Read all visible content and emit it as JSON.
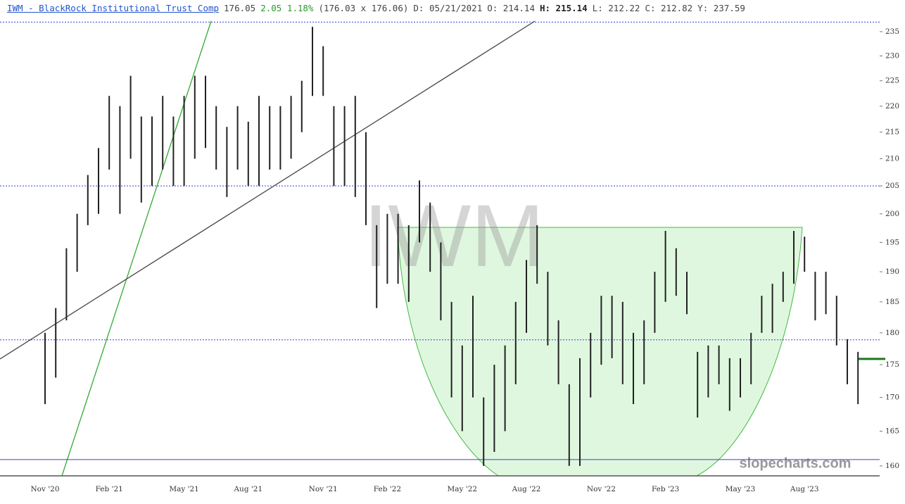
{
  "header": {
    "items": [
      "IWM - BlackRock Institutional Trust Comp",
      "176.05",
      "2.05 1.18%",
      "(176.03 x 176.06)",
      "D: 05/21/2021",
      "O: 214.14",
      "H: 215.14",
      "L: 212.22",
      "C: 212.82",
      "Y: 237.59"
    ]
  },
  "chart_data": {
    "type": "ohlc",
    "watermark": "IWM",
    "logo": "slopecharts.com",
    "color": "#222",
    "log_scale": true,
    "ylim": [
      158.6,
      237.2
    ],
    "yticks": [
      160,
      165,
      170,
      175,
      180,
      185,
      190,
      195,
      200,
      205,
      210,
      215,
      220,
      225,
      230,
      235
    ],
    "categories": [
      "Nov '20",
      null,
      null,
      null,
      null,
      null,
      "Feb '21",
      null,
      null,
      null,
      null,
      null,
      null,
      "May '21",
      null,
      null,
      null,
      null,
      null,
      "Aug '21",
      null,
      null,
      null,
      null,
      null,
      null,
      "Nov '21",
      null,
      null,
      null,
      null,
      null,
      "Feb '22",
      null,
      null,
      null,
      null,
      null,
      null,
      "May '22",
      null,
      null,
      null,
      null,
      null,
      "Aug '22",
      null,
      null,
      null,
      null,
      null,
      null,
      "Nov '22",
      null,
      null,
      null,
      null,
      null,
      "Feb '23",
      null,
      null,
      null,
      null,
      null,
      null,
      "May '23",
      null,
      null,
      null,
      null,
      null,
      "Aug '23",
      null,
      null,
      null,
      null,
      null
    ],
    "low": [
      169,
      173,
      182,
      190,
      198,
      200,
      208,
      200,
      210,
      202,
      205,
      208,
      205,
      205,
      210,
      212,
      208,
      203,
      208,
      205,
      205,
      208,
      208,
      210,
      215,
      222,
      222,
      205,
      205,
      203,
      198,
      184,
      188,
      188,
      185,
      195,
      190,
      182,
      170,
      165,
      170,
      160,
      162,
      165,
      172,
      180,
      188,
      178,
      172,
      160,
      160,
      170,
      175,
      176,
      172,
      169,
      172,
      180,
      185,
      186,
      183,
      167,
      170,
      172,
      168,
      170,
      172,
      180,
      180,
      185,
      188,
      190,
      182,
      183,
      178,
      172,
      169
    ],
    "high": [
      180,
      184,
      194,
      200,
      207,
      212,
      222,
      220,
      226,
      218,
      218,
      222,
      218,
      222,
      226,
      226,
      220,
      216,
      220,
      217,
      222,
      220,
      220,
      222,
      225,
      236,
      232,
      220,
      220,
      222,
      215,
      198,
      200,
      200,
      198,
      206,
      202,
      195,
      185,
      178,
      186,
      170,
      175,
      178,
      185,
      192,
      198,
      190,
      182,
      172,
      176,
      180,
      186,
      186,
      185,
      180,
      182,
      190,
      197,
      194,
      190,
      177,
      178,
      178,
      176,
      176,
      180,
      186,
      188,
      190,
      197,
      196,
      190,
      190,
      186,
      179,
      177
    ],
    "hlines": [
      {
        "value": 237,
        "color": "#3344cc",
        "style": "dotted"
      },
      {
        "value": 205,
        "color": "#3344cc",
        "style": "dotted"
      },
      {
        "value": 178.9,
        "color": "#3344cc",
        "style": "dotted"
      },
      {
        "value": 160.9,
        "color": "#3344cc",
        "style": "solid"
      }
    ],
    "current": {
      "value": 175.9,
      "color": "#1a7a1a"
    }
  }
}
